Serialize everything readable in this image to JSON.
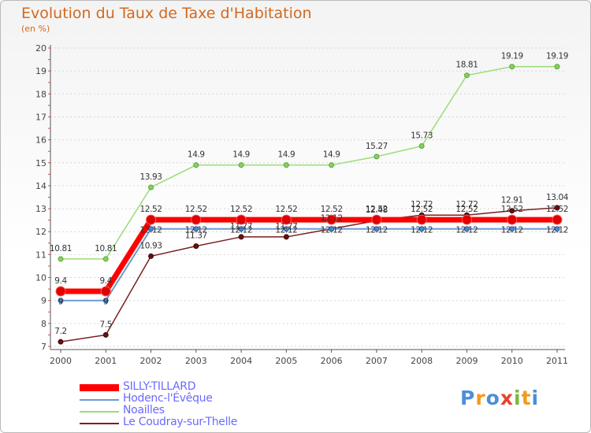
{
  "chart_data": {
    "type": "line",
    "title": "Evolution du Taux de Taxe d'Habitation",
    "ylabel": "(en %)",
    "xlabel": "",
    "x": [
      "2000",
      "2001",
      "2002",
      "2003",
      "2004",
      "2005",
      "2006",
      "2007",
      "2008",
      "2009",
      "2010",
      "2011"
    ],
    "ylim": [
      7,
      20
    ],
    "yticks": [
      "7",
      "8",
      "9",
      "10",
      "11",
      "12",
      "13",
      "14",
      "15",
      "16",
      "17",
      "18",
      "19",
      "20"
    ],
    "series": [
      {
        "name": "SILLY-TILLARD",
        "color": "#ff0000",
        "values": [
          9.4,
          9.4,
          12.52,
          12.52,
          12.52,
          12.52,
          12.52,
          12.52,
          12.52,
          12.52,
          12.52,
          12.52
        ],
        "labels": [
          "9.4",
          "9.4",
          "12.52",
          "12.52",
          "12.52",
          "12.52",
          "12.52",
          "12.52",
          "12.52",
          "12.52",
          "12.52",
          "12.52"
        ]
      },
      {
        "name": "Hodenc-l'Évêque",
        "color": "#6b9bd2",
        "values": [
          9.0,
          9.0,
          12.12,
          12.12,
          12.12,
          12.12,
          12.12,
          12.12,
          12.12,
          12.12,
          12.12,
          12.12
        ],
        "labels": [
          "9",
          "9",
          "12.12",
          "12.12",
          "12.12",
          "12.12",
          "12.12",
          "12.12",
          "12.12",
          "12.12",
          "12.12",
          "12.12"
        ]
      },
      {
        "name": "Noailles",
        "color": "#99dd77",
        "values": [
          10.81,
          10.81,
          13.93,
          14.9,
          14.9,
          14.9,
          14.9,
          15.27,
          15.73,
          18.81,
          19.19,
          19.19
        ],
        "labels": [
          "10.81",
          "10.81",
          "13.93",
          "14.9",
          "14.9",
          "14.9",
          "14.9",
          "15.27",
          "15.73",
          "18.81",
          "19.19",
          "19.19"
        ]
      },
      {
        "name": "Le Coudray-sur-Thelle",
        "color": "#7a1f1f",
        "values": [
          7.2,
          7.5,
          10.93,
          11.37,
          11.77,
          11.77,
          12.12,
          12.48,
          12.72,
          12.72,
          12.91,
          13.04
        ],
        "labels": [
          "7.2",
          "7.5",
          "10.93",
          "11.37",
          "11.77",
          "11.77",
          "12.12",
          "12.48",
          "12.72",
          "12.72",
          "12.91",
          "13.04"
        ]
      }
    ]
  },
  "logo": {
    "text": "Proxiti",
    "p": "P",
    "r": "r",
    "o": "o",
    "x": "x",
    "i": "i",
    "t": "t",
    "i2": "i"
  }
}
